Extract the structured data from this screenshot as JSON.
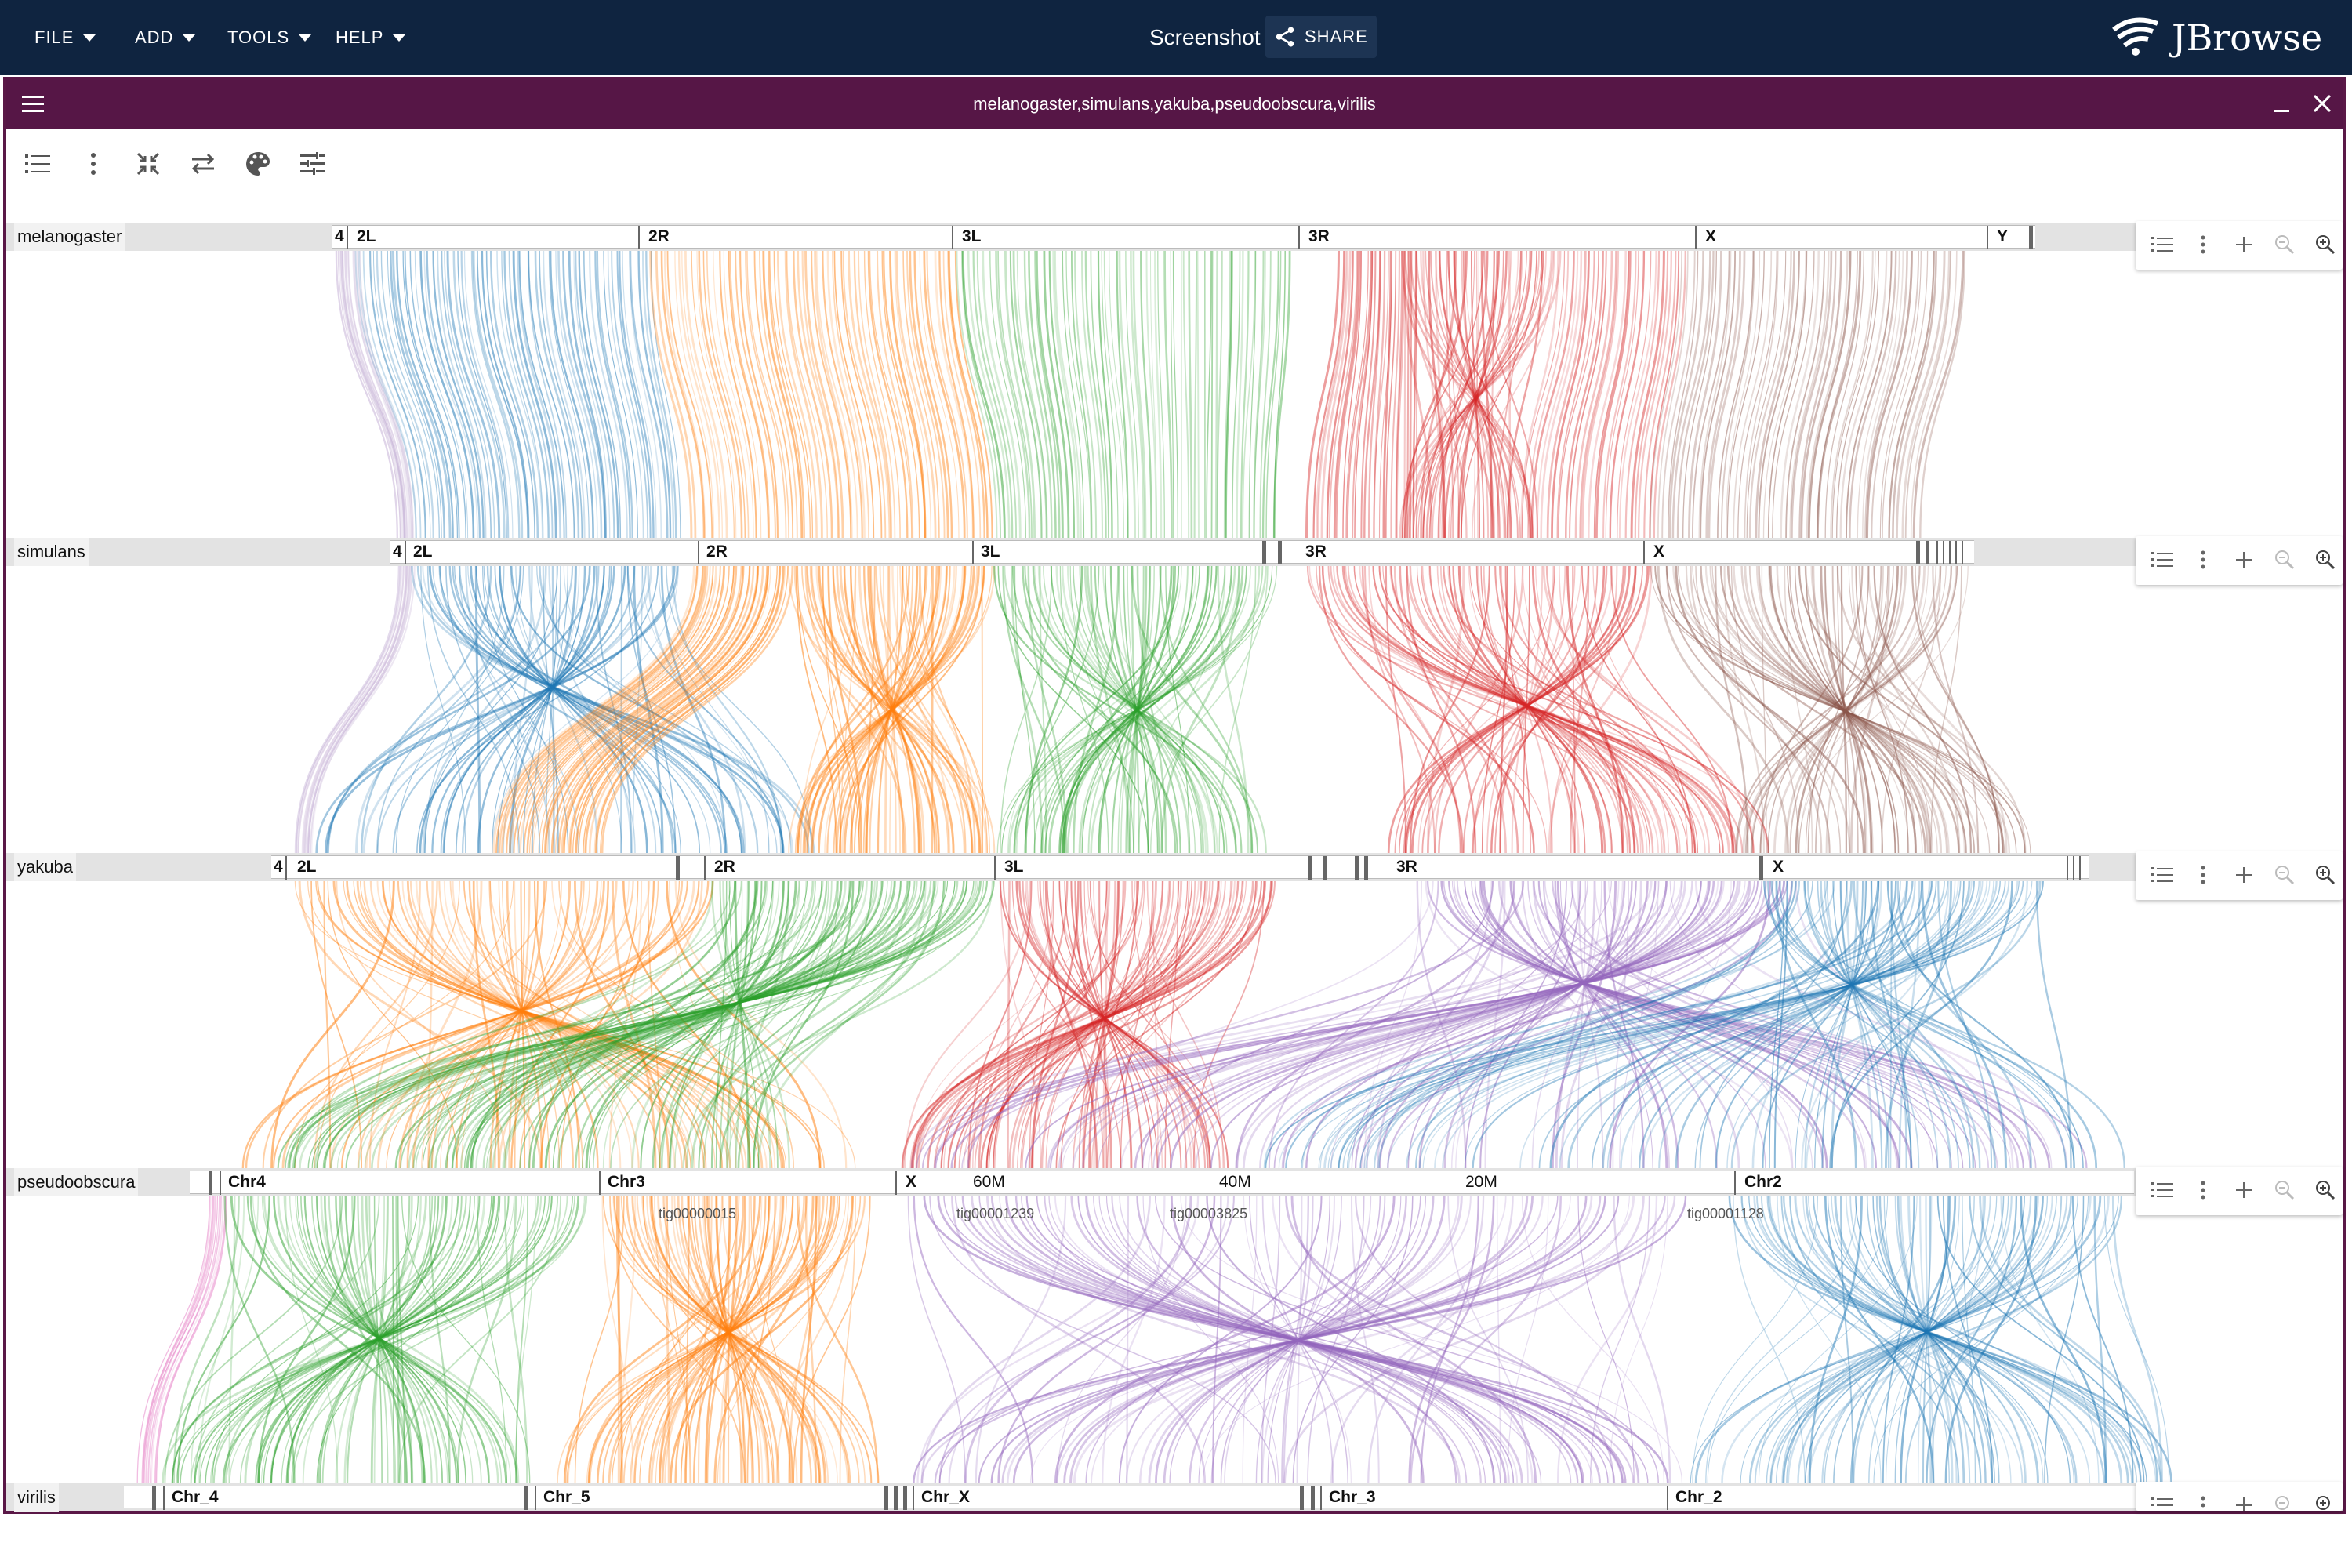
{
  "menu": {
    "file": "FILE",
    "add": "ADD",
    "tools": "TOOLS",
    "help": "HELP"
  },
  "session": {
    "name": "Screenshot",
    "share_label": "SHARE"
  },
  "logo": {
    "text": "JBrowse"
  },
  "view": {
    "title": "melanogaster,simulans,yakuba,pseudoobscura,virilis"
  },
  "toolbar_icons": [
    "track-list-icon",
    "more-vert-icon",
    "collapse-icon",
    "swap-icon",
    "palette-icon",
    "tune-icon"
  ],
  "colors": {
    "appbar": "#0f2440",
    "view_header": "#561646",
    "blue": "#1f77b4",
    "orange": "#ff7f0e",
    "green": "#2ca02c",
    "red": "#d62728",
    "purple": "#9467bd",
    "brown": "#8c564b",
    "pink": "#e377c2",
    "lavender": "#c5b0d5"
  },
  "tracks": [
    {
      "name": "melanogaster",
      "chroms": [
        {
          "label": "4"
        },
        {
          "label": "2L"
        },
        {
          "label": "2R"
        },
        {
          "label": "3L"
        },
        {
          "label": "3R"
        },
        {
          "label": "X"
        },
        {
          "label": "Y"
        }
      ]
    },
    {
      "name": "simulans",
      "chroms": [
        {
          "label": "4"
        },
        {
          "label": "2L"
        },
        {
          "label": "2R"
        },
        {
          "label": "3L"
        },
        {
          "label": "3R"
        },
        {
          "label": "X"
        }
      ]
    },
    {
      "name": "yakuba",
      "chroms": [
        {
          "label": "4"
        },
        {
          "label": "2L"
        },
        {
          "label": "2R"
        },
        {
          "label": "3L"
        },
        {
          "label": "3R"
        },
        {
          "label": "X"
        }
      ]
    },
    {
      "name": "pseudoobscura",
      "chroms": [
        {
          "label": "Chr4"
        },
        {
          "label": "Chr3"
        },
        {
          "label": "X"
        },
        {
          "label": "60M"
        },
        {
          "label": "40M"
        },
        {
          "label": "20M"
        },
        {
          "label": "Chr2"
        }
      ],
      "contigs": [
        "tig00000015",
        "tig00001239",
        "tig00003825",
        "tig00001128"
      ]
    },
    {
      "name": "virilis",
      "chroms": [
        {
          "label": "Chr_4"
        },
        {
          "label": "Chr_5"
        },
        {
          "label": "Chr_X"
        },
        {
          "label": "Chr_3"
        },
        {
          "label": "Chr_2"
        }
      ]
    }
  ]
}
